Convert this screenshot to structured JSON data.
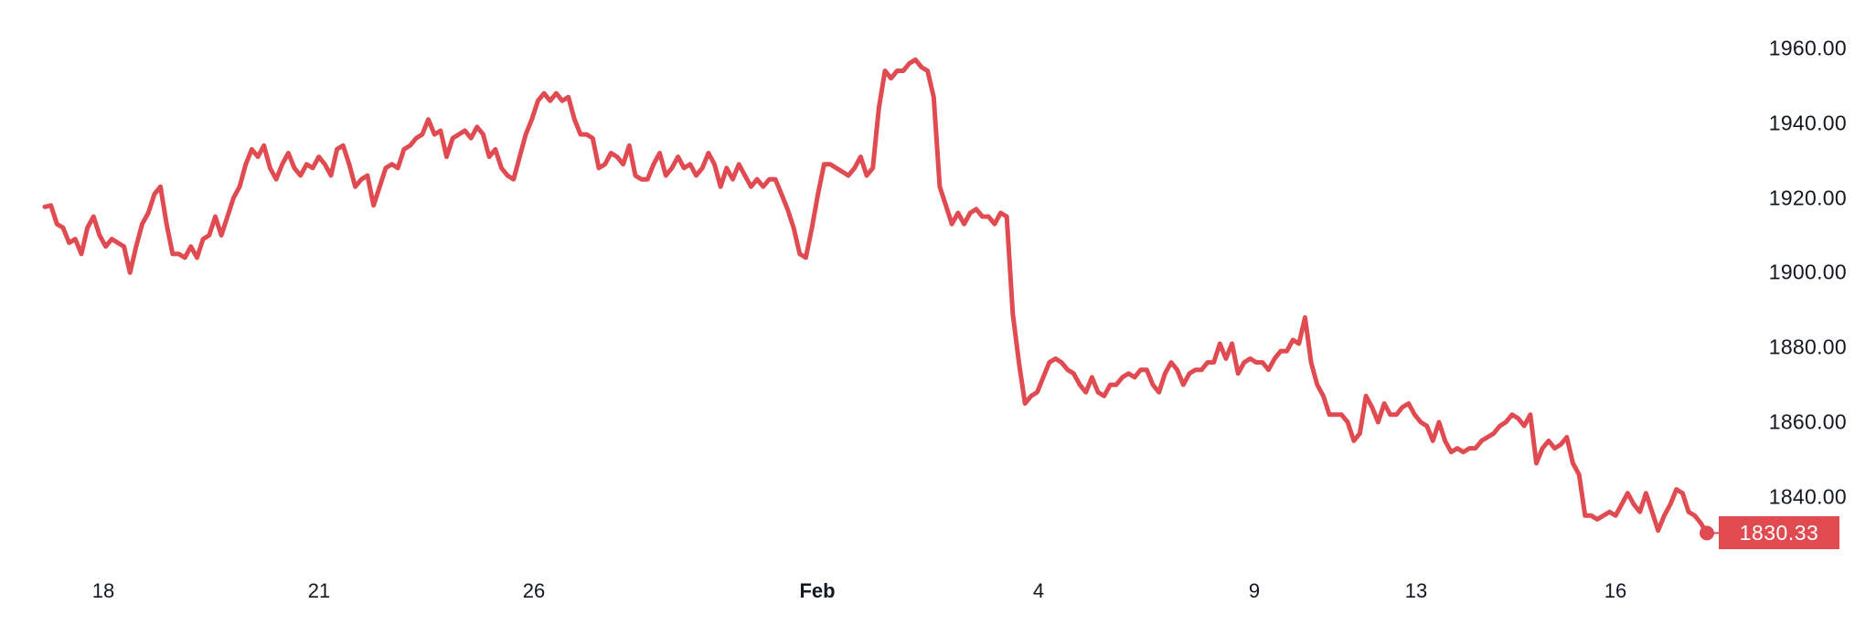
{
  "chart_data": {
    "type": "line",
    "title": "",
    "xlabel": "",
    "ylabel": "",
    "ylim": [
      1822,
      1969
    ],
    "grid": false,
    "line_color": "#e04b51",
    "y_ticks": [
      "1960.00",
      "1940.00",
      "1920.00",
      "1900.00",
      "1880.00",
      "1860.00",
      "1840.00"
    ],
    "y_tick_values": [
      1960,
      1940,
      1920,
      1900,
      1880,
      1860,
      1840
    ],
    "x_ticks": [
      {
        "label": "18",
        "bold": false
      },
      {
        "label": "21",
        "bold": false
      },
      {
        "label": "26",
        "bold": false
      },
      {
        "label": "Feb",
        "bold": true
      },
      {
        "label": "4",
        "bold": false
      },
      {
        "label": "9",
        "bold": false
      },
      {
        "label": "13",
        "bold": false
      },
      {
        "label": "16",
        "bold": false
      }
    ],
    "last_value": 1830.33,
    "last_value_label": "1830.33",
    "values": [
      1917.6,
      1918,
      1913,
      1912,
      1908,
      1909,
      1905,
      1912,
      1915,
      1910,
      1907,
      1909,
      1908,
      1907,
      1900,
      1907,
      1913,
      1916,
      1921,
      1923,
      1913,
      1905,
      1905,
      1904,
      1907,
      1904,
      1909,
      1910,
      1915,
      1910,
      1915,
      1920,
      1923,
      1929,
      1933,
      1931,
      1934,
      1928,
      1925,
      1929,
      1932,
      1928,
      1926,
      1929,
      1928,
      1931,
      1929,
      1926,
      1933,
      1934,
      1929,
      1923,
      1925,
      1926,
      1918,
      1923,
      1928,
      1929,
      1928,
      1933,
      1934,
      1936,
      1937,
      1941,
      1937,
      1938,
      1931,
      1936,
      1937,
      1938,
      1936,
      1939,
      1937,
      1931,
      1933,
      1928,
      1926,
      1925,
      1931,
      1937,
      1941,
      1946,
      1948,
      1946,
      1948,
      1946,
      1947,
      1941,
      1937,
      1937,
      1936,
      1928,
      1929,
      1932,
      1931,
      1929,
      1934,
      1926,
      1925,
      1925,
      1929,
      1932,
      1926,
      1928,
      1931,
      1928,
      1929,
      1926,
      1928,
      1932,
      1929,
      1923,
      1928,
      1925,
      1929,
      1926,
      1923,
      1925,
      1923,
      1925,
      1925,
      1921,
      1917,
      1912,
      1905,
      1904,
      1912,
      1921,
      1929,
      1929,
      1928,
      1927,
      1926,
      1928,
      1931,
      1926,
      1928,
      1944,
      1954,
      1952,
      1954,
      1954,
      1956,
      1957,
      1955,
      1954,
      1947,
      1923,
      1918,
      1913,
      1916,
      1913,
      1916,
      1917,
      1915,
      1915,
      1913,
      1916,
      1915,
      1889,
      1876,
      1865,
      1867,
      1868,
      1872,
      1876,
      1877,
      1876,
      1874,
      1873,
      1870,
      1868,
      1872,
      1868,
      1867,
      1870,
      1870,
      1872,
      1873,
      1872,
      1874,
      1874,
      1870,
      1868,
      1873,
      1876,
      1874,
      1870,
      1873,
      1874,
      1874,
      1876,
      1876,
      1881,
      1877,
      1881,
      1873,
      1876,
      1877,
      1876,
      1876,
      1874,
      1877,
      1879,
      1879,
      1882,
      1881,
      1888,
      1876,
      1870,
      1867,
      1862,
      1862,
      1862,
      1860,
      1855,
      1857,
      1867,
      1864,
      1860,
      1865,
      1862,
      1862,
      1864,
      1865,
      1862,
      1860,
      1859,
      1855,
      1860,
      1855,
      1852,
      1853,
      1852,
      1853,
      1853,
      1855,
      1856,
      1857,
      1859,
      1860,
      1862,
      1861,
      1859,
      1862,
      1849,
      1853,
      1855,
      1853,
      1854,
      1856,
      1849,
      1846,
      1835,
      1835,
      1834,
      1835,
      1836,
      1835,
      1838,
      1841,
      1838,
      1836,
      1841,
      1836,
      1831,
      1835,
      1838,
      1842,
      1841,
      1836,
      1835,
      1833,
      1830.33
    ]
  }
}
